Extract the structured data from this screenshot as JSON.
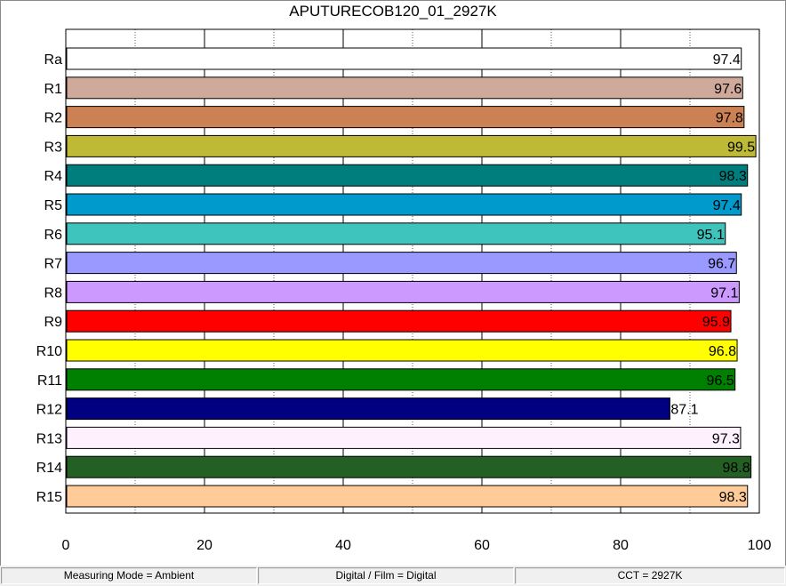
{
  "chart_data": {
    "type": "bar",
    "orientation": "horizontal",
    "title": "APUTURECOB120_01_2927K",
    "xlabel": "",
    "ylabel": "",
    "xlim": [
      0,
      100
    ],
    "x_ticks": [
      0,
      20,
      40,
      60,
      80,
      100
    ],
    "grid": "vertical dotted at 10-unit intervals, solid at 20-unit intervals",
    "legend": "none",
    "categories": [
      "Ra",
      "R1",
      "R2",
      "R3",
      "R4",
      "R5",
      "R6",
      "R7",
      "R8",
      "R9",
      "R10",
      "R11",
      "R12",
      "R13",
      "R14",
      "R15"
    ],
    "values": [
      97.4,
      97.6,
      97.8,
      99.5,
      98.3,
      97.4,
      95.1,
      96.7,
      97.1,
      95.9,
      96.8,
      96.5,
      87.1,
      97.3,
      98.8,
      98.3
    ],
    "value_labels": [
      "97.4",
      "97.6",
      "97.8",
      "99.5",
      "98.3",
      "97.4",
      "95.1",
      "96.7",
      "97.1",
      "95.9",
      "96.8",
      "96.5",
      "87.1",
      "97.3",
      "98.8",
      "98.3"
    ],
    "colors": [
      "#ffffff",
      "#cfa99a",
      "#cc8155",
      "#bfba36",
      "#007e7e",
      "#009acc",
      "#3ec4bc",
      "#9999ff",
      "#cc99ff",
      "#ff0000",
      "#ffff00",
      "#008000",
      "#000080",
      "#fff0ff",
      "#246024",
      "#ffcc99"
    ]
  },
  "status": {
    "measuring_mode": "Measuring Mode = Ambient",
    "digital_film": "Digital / Film = Digital",
    "cct": "CCT = 2927K"
  }
}
